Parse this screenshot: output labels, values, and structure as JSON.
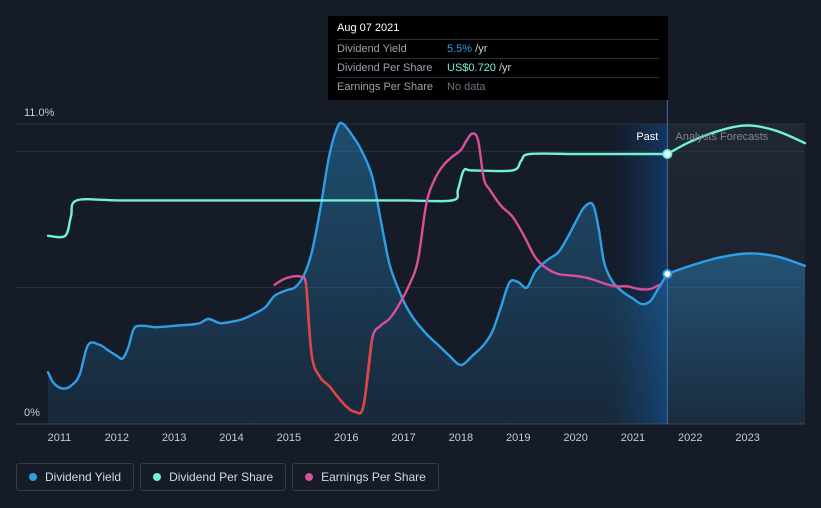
{
  "tooltip": {
    "date": "Aug 07 2021",
    "rows": [
      {
        "label": "Dividend Yield",
        "value": "5.5%",
        "unit": " /yr",
        "color": "#2e9fe6"
      },
      {
        "label": "Dividend Per Share",
        "value": "US$0.720",
        "unit": " /yr",
        "color": "#6ff2d8"
      },
      {
        "label": "Earnings Per Share",
        "value": "No data",
        "unit": "",
        "color": "#6b7280"
      }
    ]
  },
  "legend": [
    {
      "label": "Dividend Yield",
      "color": "#2e9fe6"
    },
    {
      "label": "Dividend Per Share",
      "color": "#6ff2d8"
    },
    {
      "label": "Earnings Per Share",
      "color": "#d94f9a"
    }
  ],
  "chart_data": {
    "type": "line",
    "y_axis_labels": [
      "11.0%",
      "0%"
    ],
    "ylim": [
      0,
      11
    ],
    "xlim": [
      2010.8,
      2024
    ],
    "x_ticks": [
      "2011",
      "2012",
      "2013",
      "2014",
      "2015",
      "2016",
      "2017",
      "2018",
      "2019",
      "2020",
      "2021",
      "2022",
      "2023"
    ],
    "past_label": "Past",
    "forecast_label": "Analysts Forecasts",
    "forecast_start": 2021.6,
    "series": [
      {
        "name": "Dividend Yield",
        "color": "#2e9fe6",
        "points": [
          [
            2010.8,
            1.9
          ],
          [
            2010.9,
            1.5
          ],
          [
            2011.05,
            1.3
          ],
          [
            2011.2,
            1.4
          ],
          [
            2011.35,
            1.8
          ],
          [
            2011.5,
            2.9
          ],
          [
            2011.7,
            2.9
          ],
          [
            2011.85,
            2.7
          ],
          [
            2012.0,
            2.5
          ],
          [
            2012.1,
            2.4
          ],
          [
            2012.2,
            2.8
          ],
          [
            2012.3,
            3.5
          ],
          [
            2012.45,
            3.6
          ],
          [
            2012.7,
            3.55
          ],
          [
            2013.0,
            3.6
          ],
          [
            2013.3,
            3.65
          ],
          [
            2013.45,
            3.7
          ],
          [
            2013.6,
            3.85
          ],
          [
            2013.8,
            3.7
          ],
          [
            2014.0,
            3.75
          ],
          [
            2014.2,
            3.85
          ],
          [
            2014.45,
            4.1
          ],
          [
            2014.6,
            4.3
          ],
          [
            2014.75,
            4.7
          ],
          [
            2014.95,
            4.9
          ],
          [
            2015.1,
            5.0
          ],
          [
            2015.25,
            5.4
          ],
          [
            2015.4,
            6.3
          ],
          [
            2015.55,
            7.9
          ],
          [
            2015.7,
            9.8
          ],
          [
            2015.85,
            10.9
          ],
          [
            2015.95,
            11.0
          ],
          [
            2016.1,
            10.6
          ],
          [
            2016.25,
            10.1
          ],
          [
            2016.45,
            9.1
          ],
          [
            2016.6,
            7.5
          ],
          [
            2016.75,
            5.9
          ],
          [
            2016.9,
            5.0
          ],
          [
            2017.05,
            4.3
          ],
          [
            2017.2,
            3.8
          ],
          [
            2017.4,
            3.3
          ],
          [
            2017.6,
            2.9
          ],
          [
            2017.8,
            2.5
          ],
          [
            2017.95,
            2.2
          ],
          [
            2018.05,
            2.2
          ],
          [
            2018.2,
            2.5
          ],
          [
            2018.4,
            2.9
          ],
          [
            2018.55,
            3.4
          ],
          [
            2018.7,
            4.3
          ],
          [
            2018.85,
            5.2
          ],
          [
            2019.0,
            5.2
          ],
          [
            2019.15,
            5.0
          ],
          [
            2019.3,
            5.6
          ],
          [
            2019.5,
            6.0
          ],
          [
            2019.7,
            6.3
          ],
          [
            2019.85,
            6.8
          ],
          [
            2020.0,
            7.4
          ],
          [
            2020.15,
            7.95
          ],
          [
            2020.3,
            8.05
          ],
          [
            2020.4,
            7.2
          ],
          [
            2020.5,
            5.9
          ],
          [
            2020.65,
            5.2
          ],
          [
            2020.85,
            4.8
          ],
          [
            2021.0,
            4.6
          ],
          [
            2021.15,
            4.4
          ],
          [
            2021.3,
            4.5
          ],
          [
            2021.45,
            5.0
          ],
          [
            2021.6,
            5.5
          ]
        ]
      },
      {
        "name": "Dividend Yield (forecast)",
        "color": "#2e9fe6",
        "points": [
          [
            2021.6,
            5.5
          ],
          [
            2022.0,
            5.8
          ],
          [
            2022.5,
            6.1
          ],
          [
            2023.0,
            6.25
          ],
          [
            2023.5,
            6.15
          ],
          [
            2024.0,
            5.8
          ]
        ]
      },
      {
        "name": "Dividend Per Share",
        "color": "#6ff2d8",
        "points": [
          [
            2010.8,
            6.9
          ],
          [
            2011.1,
            6.9
          ],
          [
            2011.2,
            7.6
          ],
          [
            2011.3,
            8.2
          ],
          [
            2012.0,
            8.2
          ],
          [
            2013.0,
            8.2
          ],
          [
            2014.0,
            8.2
          ],
          [
            2015.0,
            8.2
          ],
          [
            2016.0,
            8.2
          ],
          [
            2017.0,
            8.2
          ],
          [
            2017.85,
            8.2
          ],
          [
            2017.95,
            8.6
          ],
          [
            2018.05,
            9.3
          ],
          [
            2018.2,
            9.3
          ],
          [
            2018.9,
            9.3
          ],
          [
            2019.05,
            9.65
          ],
          [
            2019.2,
            9.9
          ],
          [
            2020.0,
            9.9
          ],
          [
            2021.0,
            9.9
          ],
          [
            2021.6,
            9.9
          ]
        ]
      },
      {
        "name": "Dividend Per Share (forecast)",
        "color": "#6ff2d8",
        "points": [
          [
            2021.6,
            9.9
          ],
          [
            2022.0,
            10.35
          ],
          [
            2022.5,
            10.75
          ],
          [
            2023.0,
            10.95
          ],
          [
            2023.5,
            10.75
          ],
          [
            2024.0,
            10.3
          ]
        ]
      },
      {
        "name": "Earnings Per Share",
        "color": "#d94f9a",
        "points": [
          [
            2014.75,
            5.1
          ],
          [
            2014.9,
            5.3
          ],
          [
            2015.05,
            5.4
          ],
          [
            2015.2,
            5.4
          ],
          [
            2015.3,
            5.1
          ],
          [
            2015.4,
            2.5
          ],
          [
            2015.55,
            1.7
          ],
          [
            2015.7,
            1.4
          ],
          [
            2015.85,
            1.0
          ],
          [
            2016.0,
            0.65
          ],
          [
            2016.15,
            0.45
          ],
          [
            2016.3,
            0.65
          ],
          [
            2016.45,
            3.1
          ],
          [
            2016.6,
            3.6
          ],
          [
            2016.75,
            3.85
          ],
          [
            2016.9,
            4.3
          ],
          [
            2017.1,
            5.1
          ],
          [
            2017.25,
            6.0
          ],
          [
            2017.4,
            8.1
          ],
          [
            2017.55,
            9.0
          ],
          [
            2017.7,
            9.5
          ],
          [
            2017.85,
            9.8
          ],
          [
            2018.0,
            10.05
          ],
          [
            2018.1,
            10.4
          ],
          [
            2018.2,
            10.65
          ],
          [
            2018.3,
            10.4
          ],
          [
            2018.4,
            9.0
          ],
          [
            2018.5,
            8.6
          ],
          [
            2018.7,
            8.0
          ],
          [
            2018.9,
            7.6
          ],
          [
            2019.1,
            6.9
          ],
          [
            2019.3,
            6.1
          ],
          [
            2019.5,
            5.7
          ],
          [
            2019.7,
            5.5
          ],
          [
            2019.9,
            5.45
          ],
          [
            2020.1,
            5.4
          ],
          [
            2020.3,
            5.3
          ],
          [
            2020.5,
            5.15
          ],
          [
            2020.7,
            5.05
          ],
          [
            2020.9,
            5.05
          ],
          [
            2021.1,
            4.95
          ],
          [
            2021.3,
            4.95
          ],
          [
            2021.45,
            5.1
          ]
        ]
      }
    ],
    "highlight_points": [
      {
        "series": "Dividend Per Share",
        "x": 2021.6,
        "y": 9.9
      },
      {
        "series": "Dividend Yield",
        "x": 2021.6,
        "y": 5.5
      }
    ]
  }
}
